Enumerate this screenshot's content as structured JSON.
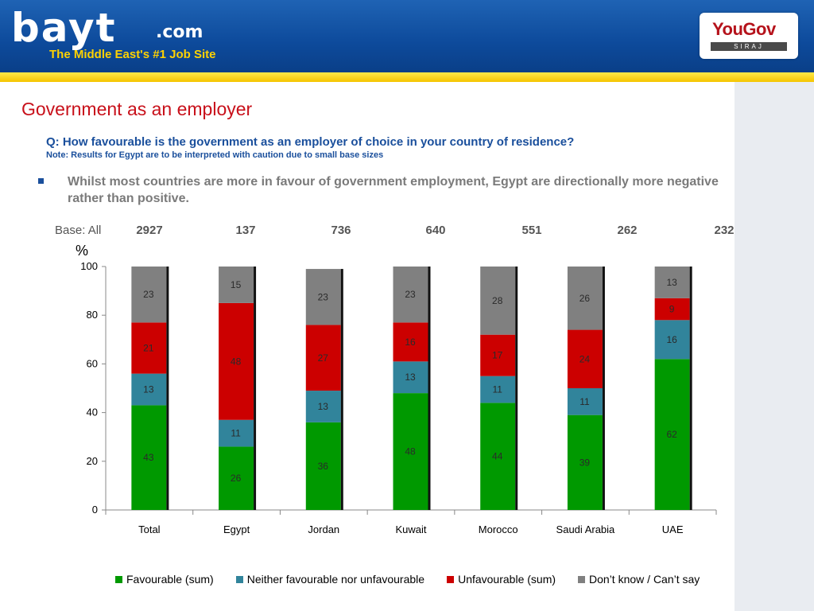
{
  "header": {
    "logo_main": "bayt",
    "logo_suffix": ".com",
    "tagline": "The Middle East's #1 Job Site",
    "partner_name": "YouGov",
    "partner_sub": "SIRAJ"
  },
  "slide": {
    "title": "Government as an employer",
    "question": "Q: How favourable is the government as an employer of choice in your country of residence?",
    "note": "Note: Results for Egypt are to be interpreted with caution due to small base sizes",
    "bullet": "Whilst most countries are more in favour of government employment, Egypt are directionally more negative rather than positive.",
    "base_label": "Base: All",
    "base_values": [
      "2927",
      "137",
      "736",
      "640",
      "551",
      "262",
      "232"
    ],
    "unit_label": "%"
  },
  "chart_data": {
    "type": "bar",
    "stacked": true,
    "categories": [
      "Total",
      "Egypt",
      "Jordan",
      "Kuwait",
      "Morocco",
      "Saudi Arabia",
      "UAE"
    ],
    "ylim": [
      0,
      100
    ],
    "yticks": [
      0,
      20,
      40,
      60,
      80,
      100
    ],
    "legend_position": "bottom",
    "series": [
      {
        "name": "Favourable (sum)",
        "color": "#009900",
        "label_color": "#2a2a2a",
        "values": [
          43,
          26,
          36,
          48,
          44,
          39,
          62
        ]
      },
      {
        "name": "Neither favourable nor unfavourable",
        "color": "#31849b",
        "label_color": "#2a2a2a",
        "values": [
          13,
          11,
          13,
          13,
          11,
          11,
          16
        ]
      },
      {
        "name": "Unfavourable (sum)",
        "color": "#cc0000",
        "label_color": "#2a2a2a",
        "values": [
          21,
          48,
          27,
          16,
          17,
          24,
          9
        ]
      },
      {
        "name": "Don’t know / Can’t say",
        "color": "#808080",
        "label_color": "#2a2a2a",
        "values": [
          23,
          15,
          23,
          23,
          28,
          26,
          13
        ]
      }
    ]
  }
}
